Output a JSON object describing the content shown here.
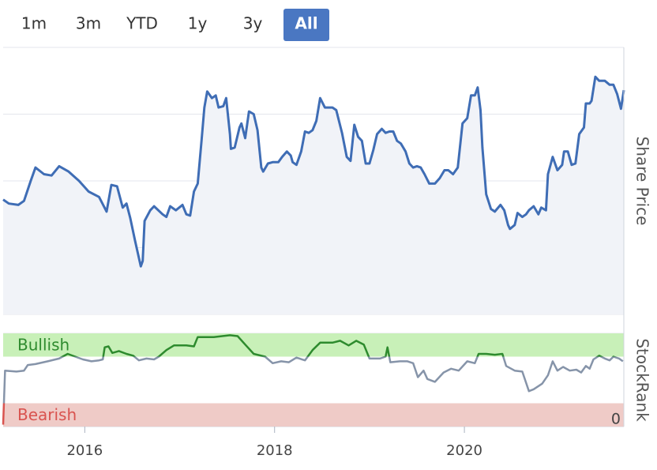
{
  "range_buttons": {
    "labels": [
      "1m",
      "3m",
      "YTD",
      "1y",
      "3y",
      "All"
    ],
    "selected": 5,
    "selected_color": "#4a77c2"
  },
  "chart_data": [
    {
      "type": "line",
      "y_label": "Share Price",
      "color": "#3f6db5",
      "area_color": "#f1f3f8",
      "x": [
        2015.14,
        2015.2,
        2015.3,
        2015.36,
        2015.43,
        2015.48,
        2015.57,
        2015.65,
        2015.73,
        2015.83,
        2015.94,
        2016.04,
        2016.15,
        2016.23,
        2016.28,
        2016.34,
        2016.4,
        2016.44,
        2016.48,
        2016.53,
        2016.59,
        2016.61,
        2016.63,
        2016.69,
        2016.73,
        2016.82,
        2016.86,
        2016.9,
        2016.96,
        2017.03,
        2017.07,
        2017.11,
        2017.15,
        2017.19,
        2017.23,
        2017.26,
        2017.29,
        2017.34,
        2017.38,
        2017.41,
        2017.46,
        2017.49,
        2017.53,
        2017.54,
        2017.58,
        2017.63,
        2017.65,
        2017.69,
        2017.73,
        2017.78,
        2017.82,
        2017.86,
        2017.88,
        2017.93,
        2017.98,
        2018.04,
        2018.08,
        2018.13,
        2018.17,
        2018.19,
        2018.23,
        2018.28,
        2018.32,
        2018.36,
        2018.4,
        2018.44,
        2018.48,
        2018.53,
        2018.57,
        2018.61,
        2018.65,
        2018.71,
        2018.76,
        2018.8,
        2018.84,
        2018.88,
        2018.92,
        2018.96,
        2019.0,
        2019.04,
        2019.08,
        2019.13,
        2019.17,
        2019.21,
        2019.25,
        2019.29,
        2019.33,
        2019.38,
        2019.42,
        2019.46,
        2019.5,
        2019.54,
        2019.58,
        2019.63,
        2019.69,
        2019.74,
        2019.79,
        2019.83,
        2019.88,
        2019.93,
        2019.98,
        2020.03,
        2020.07,
        2020.11,
        2020.14,
        2020.17,
        2020.19,
        2020.23,
        2020.28,
        2020.32,
        2020.38,
        2020.42,
        2020.46,
        2020.48,
        2020.53,
        2020.56,
        2020.61,
        2020.65,
        2020.68,
        2020.73,
        2020.78,
        2020.81,
        2020.86,
        2020.88,
        2020.93,
        2020.98,
        2021.03,
        2021.05,
        2021.09,
        2021.13,
        2021.17,
        2021.21,
        2021.26,
        2021.28,
        2021.32,
        2021.34,
        2021.38,
        2021.42,
        2021.48,
        2021.53,
        2021.57,
        2021.61,
        2021.65,
        2021.68
      ],
      "values": [
        186,
        183,
        182,
        185,
        200,
        210,
        205,
        204,
        211,
        207,
        200,
        192,
        188,
        177,
        197,
        196,
        180,
        183,
        172,
        155,
        136,
        140,
        170,
        178,
        181,
        175,
        173,
        181,
        178,
        182,
        175,
        174,
        192,
        198,
        230,
        255,
        267,
        262,
        264,
        255,
        256,
        262,
        235,
        224,
        225,
        240,
        243,
        232,
        252,
        250,
        238,
        210,
        207,
        213,
        214,
        214,
        218,
        222,
        219,
        214,
        212,
        222,
        237,
        236,
        238,
        245,
        262,
        255,
        255,
        255,
        253,
        236,
        218,
        215,
        242,
        233,
        230,
        213,
        213,
        223,
        235,
        239,
        236,
        237,
        237,
        230,
        228,
        222,
        213,
        210,
        211,
        210,
        205,
        198,
        198,
        202,
        208,
        208,
        205,
        210,
        243,
        247,
        264,
        264,
        270,
        253,
        225,
        190,
        179,
        177,
        182,
        178,
        167,
        164,
        167,
        176,
        173,
        175,
        178,
        181,
        175,
        180,
        178,
        205,
        218,
        208,
        212,
        222,
        222,
        212,
        213,
        235,
        240,
        258,
        258,
        260,
        278,
        275,
        275,
        272,
        272,
        265,
        254,
        268
      ],
      "xlim": [
        2015.14,
        2021.68
      ],
      "ylim": [
        100,
        300
      ],
      "yticks": [
        100,
        150,
        200,
        250
      ],
      "grid": true
    },
    {
      "type": "line",
      "y_label": "StockRank",
      "color": "#8694a9",
      "x": [
        2015.14,
        2015.16,
        2015.28,
        2015.36,
        2015.4,
        2015.48,
        2015.61,
        2015.73,
        2015.82,
        2015.9,
        2015.98,
        2016.07,
        2016.15,
        2016.19,
        2016.21,
        2016.25,
        2016.29,
        2016.36,
        2016.44,
        2016.51,
        2016.57,
        2016.65,
        2016.73,
        2016.78,
        2016.86,
        2016.94,
        2017.07,
        2017.15,
        2017.19,
        2017.36,
        2017.53,
        2017.61,
        2017.69,
        2017.78,
        2017.9,
        2017.98,
        2018.07,
        2018.15,
        2018.23,
        2018.32,
        2018.4,
        2018.48,
        2018.61,
        2018.69,
        2018.78,
        2018.86,
        2018.94,
        2019.0,
        2019.11,
        2019.17,
        2019.19,
        2019.22,
        2019.32,
        2019.4,
        2019.46,
        2019.51,
        2019.57,
        2019.61,
        2019.69,
        2019.78,
        2019.86,
        2019.94,
        2020.03,
        2020.11,
        2020.15,
        2020.23,
        2020.32,
        2020.4,
        2020.44,
        2020.53,
        2020.61,
        2020.68,
        2020.73,
        2020.82,
        2020.88,
        2020.93,
        2020.98,
        2021.04,
        2021.11,
        2021.18,
        2021.23,
        2021.28,
        2021.32,
        2021.36,
        2021.42,
        2021.48,
        2021.53,
        2021.57,
        2021.63,
        2021.67
      ],
      "values": [
        2,
        60,
        59,
        60,
        66,
        67,
        70,
        73,
        78,
        75,
        72,
        70,
        71,
        72,
        85,
        86,
        79,
        81,
        78,
        76,
        71,
        73,
        72,
        75,
        82,
        87,
        87,
        86,
        96,
        96,
        98,
        97,
        88,
        78,
        75,
        68,
        70,
        69,
        74,
        71,
        82,
        90,
        90,
        92,
        87,
        92,
        88,
        73,
        73,
        75,
        85,
        69,
        70,
        70,
        68,
        53,
        60,
        51,
        48,
        58,
        62,
        60,
        70,
        68,
        78,
        78,
        77,
        78,
        65,
        60,
        59,
        38,
        40,
        46,
        55,
        70,
        60,
        64,
        60,
        61,
        58,
        65,
        62,
        72,
        76,
        73,
        71,
        75,
        73,
        70
      ],
      "bands": [
        {
          "label": "Bullish",
          "range": [
            75,
            100
          ],
          "color": "#c8f0b8",
          "text_color": "#2e8b2e",
          "line_color": "#2e8b2e"
        },
        {
          "label": "Bearish",
          "range": [
            0,
            25
          ],
          "color": "#efcbc7",
          "text_color": "#d9534f",
          "line_color": "#d9534f"
        }
      ],
      "xlim": [
        2015.14,
        2021.68
      ],
      "ylim": [
        0,
        100
      ],
      "yticks": [
        0
      ],
      "xticks": [
        2016,
        2018,
        2020
      ]
    }
  ]
}
